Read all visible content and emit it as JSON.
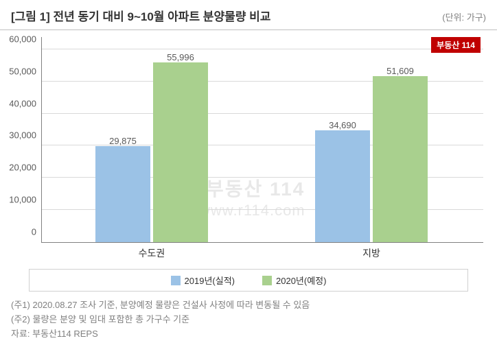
{
  "header": {
    "title": "[그림 1] 전년 동기 대비 9~10월 아파트 분양물량 비교",
    "unit": "(단위: 가구)"
  },
  "badge": "부동산 114",
  "chart": {
    "type": "bar",
    "ylim_max": 64000,
    "yticks": [
      "0",
      "10,000",
      "20,000",
      "30,000",
      "40,000",
      "50,000",
      "60,000"
    ],
    "ytick_values": [
      0,
      10000,
      20000,
      30000,
      40000,
      50000,
      60000
    ],
    "categories": [
      "수도권",
      "지방"
    ],
    "series": [
      {
        "name": "2019년(실적)",
        "color": "#9bc2e6",
        "values": [
          29875,
          34690
        ],
        "labels": [
          "29,875",
          "34,690"
        ]
      },
      {
        "name": "2020년(예정)",
        "color": "#a9d08e",
        "values": [
          55996,
          51609
        ],
        "labels": [
          "55,996",
          "51,609"
        ]
      }
    ],
    "grid_color": "#d9d9d9",
    "axis_color": "#808080",
    "label_color": "#595959"
  },
  "watermark": {
    "line1": "부동산 114",
    "line2": "www.r114.com"
  },
  "footnotes": {
    "n1": "(주1) 2020.08.27 조사 기준, 분양예정 물량은 건설사 사정에 따라 변동될 수 있음",
    "n2": "(주2) 물량은 분양 및 임대 포함한 총 가구수 기준",
    "src": "자료: 부동산114 REPS"
  }
}
